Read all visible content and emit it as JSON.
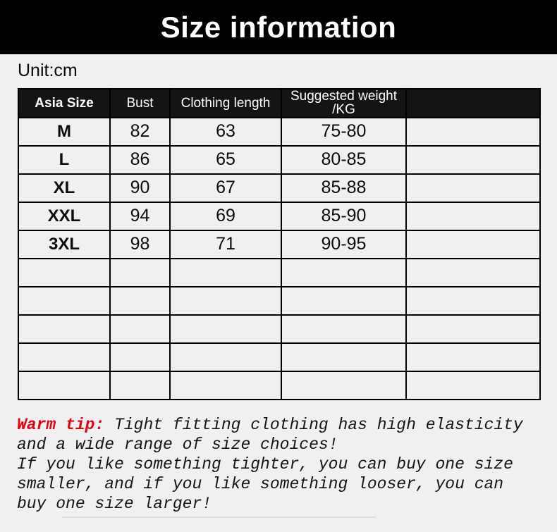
{
  "page": {
    "title_banner": "Size information",
    "unit_label": "Unit:cm"
  },
  "colors": {
    "page_background": "#f0f0f0",
    "banner_background": "#000000",
    "banner_text": "#ffffff",
    "table_header_background": "#141414",
    "table_header_text": "#ffffff",
    "table_border": "#000000",
    "warm_tip_accent": "#e60012",
    "body_text": "#111111"
  },
  "size_table": {
    "headers": {
      "size": "Asia Size",
      "bust": "Bust",
      "length": "Clothing length",
      "weight_line1": "Suggested weight",
      "weight_line2": "/KG",
      "extra": ""
    },
    "rows": [
      {
        "size": "M",
        "bust": "82",
        "length": "63",
        "weight": "75-80",
        "extra": ""
      },
      {
        "size": "L",
        "bust": "86",
        "length": "65",
        "weight": "80-85",
        "extra": ""
      },
      {
        "size": "XL",
        "bust": "90",
        "length": "67",
        "weight": "85-88",
        "extra": ""
      },
      {
        "size": "XXL",
        "bust": "94",
        "length": "69",
        "weight": "85-90",
        "extra": ""
      },
      {
        "size": "3XL",
        "bust": "98",
        "length": "71",
        "weight": "90-95",
        "extra": ""
      }
    ],
    "empty_row_count": 5
  },
  "warm_tip": {
    "label": "Warm tip:",
    "line1_rest": " Tight fitting clothing has high elasticity",
    "line2": "and a wide range of size choices!",
    "line3": "If you like something tighter, you can buy one size",
    "line4": "smaller, and if you like something looser, you can",
    "line5": "buy one size larger!"
  }
}
